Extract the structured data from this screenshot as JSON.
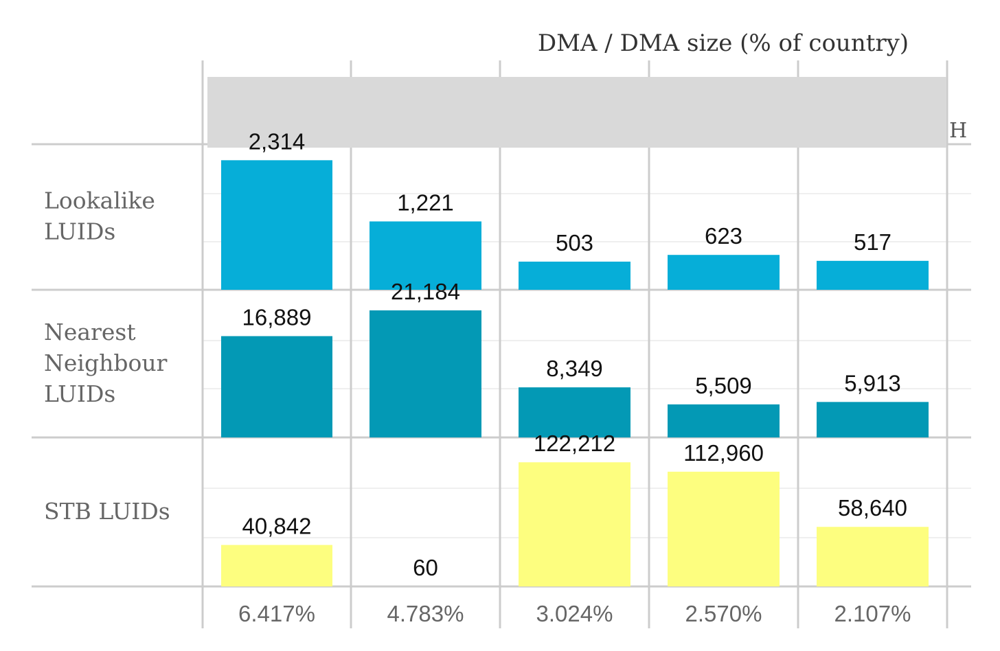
{
  "chart_data": {
    "type": "bar",
    "header": "DMA  /  DMA size (% of country)",
    "categories": [
      "6.417%",
      "4.783%",
      "3.024%",
      "2.570%",
      "2.107%"
    ],
    "series": [
      {
        "name": "Lookalike LUIDs",
        "label_lines": [
          "Lookalike",
          "LUIDs"
        ],
        "values": [
          2314,
          1221,
          503,
          623,
          517
        ],
        "value_labels": [
          "2,314",
          "1,221",
          "503",
          "623",
          "517"
        ],
        "color": "#06AED8",
        "ymax": 2600
      },
      {
        "name": "Nearest Neighbour LUIDs",
        "label_lines": [
          "Nearest",
          "Neighbour",
          "LUIDs"
        ],
        "values": [
          16889,
          21184,
          8349,
          5509,
          5913
        ],
        "value_labels": [
          "16,889",
          "21,184",
          "8,349",
          "5,509",
          "5,913"
        ],
        "color": "#0399B5",
        "ymax": 24500
      },
      {
        "name": "STB LUIDs",
        "label_lines": [
          "STB LUIDs"
        ],
        "values": [
          40842,
          60,
          122212,
          112960,
          58640
        ],
        "value_labels": [
          "40,842",
          "60",
          "122,212",
          "112,960",
          "58,640"
        ],
        "color": "#FDFE7F",
        "ymax": 146000
      }
    ],
    "grid": true,
    "legend": "none"
  }
}
